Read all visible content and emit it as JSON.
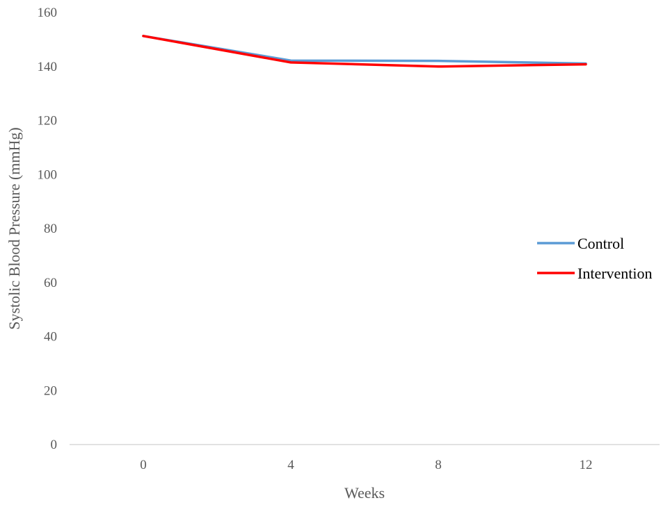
{
  "chart_data": {
    "type": "line",
    "title": "",
    "xlabel": "Weeks",
    "ylabel": "Systolic Blood Pressure (mmHg)",
    "categories": [
      "0",
      "4",
      "8",
      "12"
    ],
    "ylim": [
      0,
      160
    ],
    "yticks": [
      0,
      20,
      40,
      60,
      80,
      100,
      120,
      140,
      160
    ],
    "grid": false,
    "legend_position": "right",
    "series": [
      {
        "name": "Control",
        "values": [
          151.3,
          142.2,
          142.1,
          141.1
        ],
        "color": "#5B9BD5"
      },
      {
        "name": "Intervention",
        "values": [
          151.3,
          141.5,
          140.0,
          140.8
        ],
        "color": "#FF0000"
      }
    ]
  }
}
